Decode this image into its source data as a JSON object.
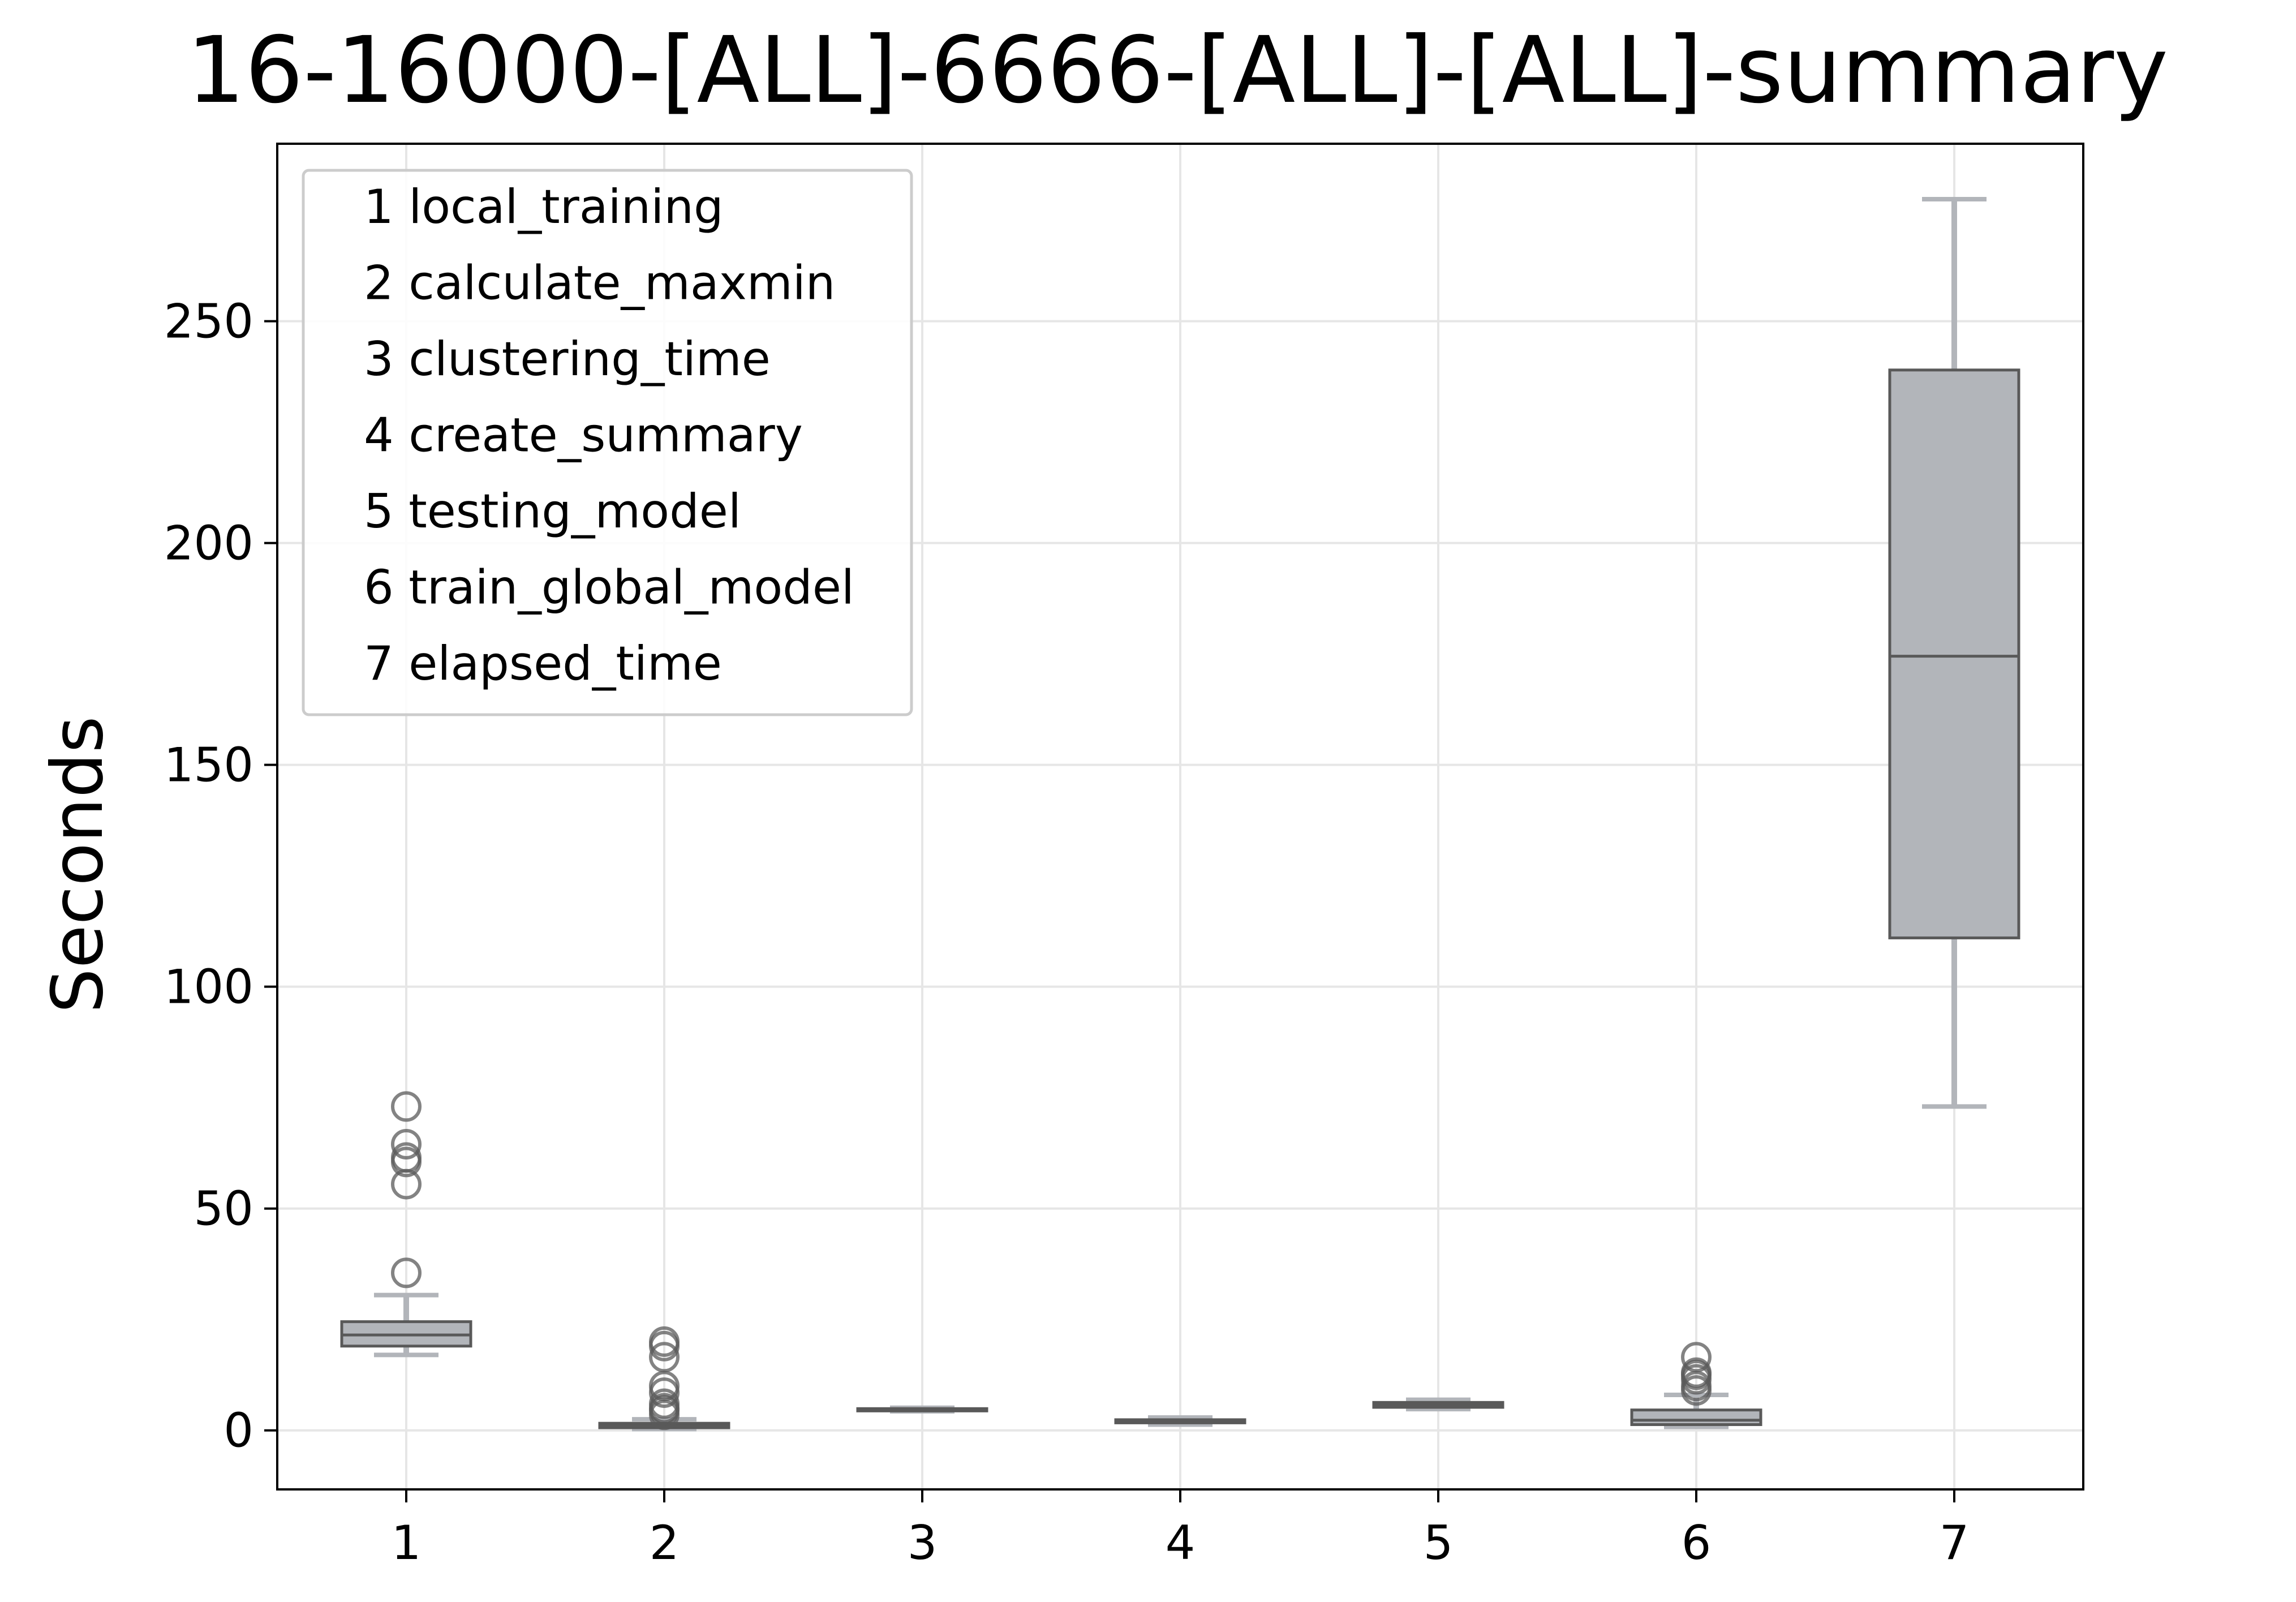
{
  "chart_data": {
    "type": "box",
    "title": "16-16000-[ALL]-6666-[ALL]-[ALL]-summary",
    "xlabel": "",
    "ylabel": "Seconds",
    "ylim": [
      -13.3,
      290
    ],
    "yticks": [
      0,
      50,
      100,
      150,
      200,
      250
    ],
    "categories": [
      "1",
      "2",
      "3",
      "4",
      "5",
      "6",
      "7"
    ],
    "grid": true,
    "legend_position": "upper-left",
    "legend": [
      "1 local_training",
      "2 calculate_maxmin",
      "3 clustering_time",
      "4 create_summary",
      "5 testing_model",
      "6 train_global_model",
      "7 elapsed_time"
    ],
    "boxes": [
      {
        "category": "1",
        "whisker_low": 17.0,
        "q1": 19.0,
        "median": 21.5,
        "q3": 24.5,
        "whisker_high": 30.5,
        "outliers": [
          35.5,
          55.5,
          60.5,
          61.5,
          64.5,
          73.0
        ]
      },
      {
        "category": "2",
        "whisker_low": 0.3,
        "q1": 0.6,
        "median": 1.0,
        "q3": 1.6,
        "whisker_high": 2.5,
        "outliers": [
          3.5,
          4.5,
          5.0,
          6.0,
          8.5,
          10.0,
          16.5,
          19.0,
          20.0
        ]
      },
      {
        "category": "3",
        "whisker_low": 4.3,
        "q1": 4.5,
        "median": 4.7,
        "q3": 4.9,
        "whisker_high": 5.1,
        "outliers": []
      },
      {
        "category": "4",
        "whisker_low": 1.3,
        "q1": 1.7,
        "median": 2.0,
        "q3": 2.4,
        "whisker_high": 2.9,
        "outliers": []
      },
      {
        "category": "5",
        "whisker_low": 4.8,
        "q1": 5.2,
        "median": 5.7,
        "q3": 6.3,
        "whisker_high": 6.9,
        "outliers": []
      },
      {
        "category": "6",
        "whisker_low": 0.8,
        "q1": 1.3,
        "median": 2.3,
        "q3": 4.6,
        "whisker_high": 8.0,
        "outliers": [
          9.0,
          10.0,
          11.5,
          12.5,
          13.0,
          16.5
        ]
      },
      {
        "category": "7",
        "whisker_low": 73.0,
        "q1": 111.0,
        "median": 174.5,
        "q3": 239.0,
        "whisker_high": 277.5,
        "outliers": []
      }
    ],
    "colors": {
      "box_fill": "#b2b5ba",
      "box_edge": "#595959",
      "whisker": "#b2b5ba",
      "grid": "#e6e6e6",
      "axis": "#000000",
      "outlier_edge": "#595959",
      "legend_edge": "#cccccc"
    }
  }
}
